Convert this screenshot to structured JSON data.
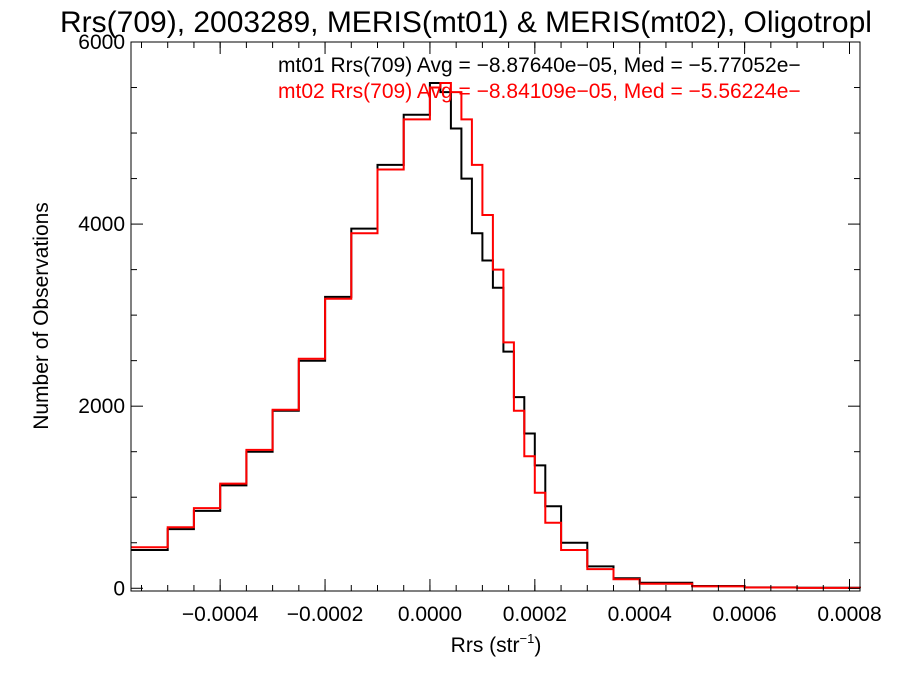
{
  "chart_data": {
    "type": "line",
    "title": "Rrs(709), 2003289, MERIS(mt01) & MERIS(mt02), Oligotropl",
    "xlabel": "Rrs (str",
    "xlabel_superscript": "−1",
    "xlabel_suffix": ")",
    "ylabel": "Number of Observations",
    "xlim": [
      -0.00057,
      0.00082
    ],
    "ylim": [
      -30,
      6000
    ],
    "x_ticks": [
      -0.0004,
      -0.0002,
      0.0,
      0.0002,
      0.0004,
      0.0006,
      0.0008
    ],
    "x_tick_labels": [
      "−0.0004",
      "−0.0002",
      "0.0000",
      "0.0002",
      "0.0004",
      "0.0006",
      "0.0008"
    ],
    "y_ticks": [
      0,
      2000,
      4000,
      6000
    ],
    "y_tick_labels": [
      "0",
      "2000",
      "4000",
      "6000"
    ],
    "grid": false,
    "annotations": [
      "mt01 Rrs(709) Avg = −8.87640e−05, Med = −5.77052e−",
      "mt02 Rrs(709) Avg = −8.84109e−05, Med = −5.56224e−"
    ],
    "annotation_colors": [
      "#000000",
      "#ff0000"
    ],
    "series": [
      {
        "color": "#000000",
        "x": [
          -0.00057,
          -0.0005,
          -0.00045,
          -0.0004,
          -0.00035,
          -0.0003,
          -0.00025,
          -0.0002,
          -0.00015,
          -0.0001,
          -5e-05,
          0.0,
          2e-05,
          4e-05,
          6e-05,
          8e-05,
          0.0001,
          0.00012,
          0.00014,
          0.00016,
          0.00018,
          0.0002,
          0.00022,
          0.00025,
          0.0003,
          0.00035,
          0.0004,
          0.0005,
          0.0006,
          0.0007,
          0.00082
        ],
        "values": [
          420,
          650,
          850,
          1130,
          1500,
          1950,
          2500,
          3200,
          3950,
          4650,
          5200,
          5550,
          5450,
          5050,
          4500,
          3900,
          3600,
          3300,
          2600,
          2100,
          1700,
          1350,
          900,
          500,
          240,
          110,
          60,
          25,
          10,
          5,
          2
        ]
      },
      {
        "color": "#ff0000",
        "x": [
          -0.00057,
          -0.0005,
          -0.00045,
          -0.0004,
          -0.00035,
          -0.0003,
          -0.00025,
          -0.0002,
          -0.00015,
          -0.0001,
          -5e-05,
          0.0,
          2e-05,
          4e-05,
          6e-05,
          8e-05,
          0.0001,
          0.00012,
          0.00014,
          0.00016,
          0.00018,
          0.0002,
          0.00022,
          0.00025,
          0.0003,
          0.00035,
          0.0004,
          0.0005,
          0.0006,
          0.0007,
          0.00082
        ],
        "values": [
          450,
          670,
          880,
          1150,
          1520,
          1960,
          2520,
          3180,
          3900,
          4600,
          5150,
          5500,
          5550,
          5450,
          5150,
          4650,
          4100,
          3500,
          2700,
          1950,
          1450,
          1050,
          720,
          420,
          210,
          100,
          50,
          20,
          8,
          4,
          2
        ]
      }
    ]
  }
}
